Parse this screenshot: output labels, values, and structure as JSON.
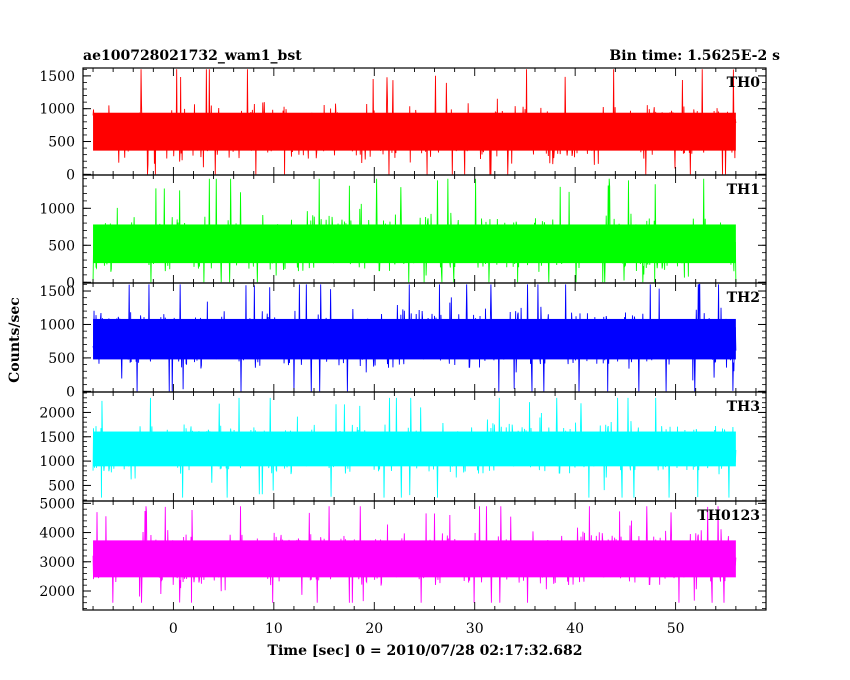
{
  "chart_data": {
    "type": "line",
    "title_left": "ae100728021732_wam1_bst",
    "title_right": "Bin time: 1.5625E-2 s",
    "xlabel": "Time [sec] 0 = 2010/07/28 02:17:32.682",
    "ylabel": "Counts/sec",
    "xlim": [
      -9,
      59
    ],
    "xticks": [
      0,
      10,
      20,
      30,
      40,
      50
    ],
    "panels": [
      {
        "name": "TH0",
        "color": "#ff0000",
        "ylim": [
          -10,
          1620
        ],
        "yticks": [
          0,
          500,
          1000,
          1500
        ],
        "series": {
          "x_range": [
            -8,
            56
          ],
          "mean": 650,
          "typical_low": 150,
          "typical_high": 1200,
          "min": 0,
          "max": 1600
        }
      },
      {
        "name": "TH1",
        "color": "#00ff00",
        "ylim": [
          -10,
          1450
        ],
        "yticks": [
          0,
          500,
          1000
        ],
        "series": {
          "x_range": [
            -8,
            56
          ],
          "mean": 520,
          "typical_low": 100,
          "typical_high": 1050,
          "min": 0,
          "max": 1400
        }
      },
      {
        "name": "TH2",
        "color": "#0000ff",
        "ylim": [
          -10,
          1620
        ],
        "yticks": [
          0,
          500,
          1000,
          1500
        ],
        "series": {
          "x_range": [
            -8,
            56
          ],
          "mean": 780,
          "typical_low": 250,
          "typical_high": 1350,
          "min": 0,
          "max": 1600
        }
      },
      {
        "name": "TH3",
        "color": "#00ffff",
        "ylim": [
          180,
          2420
        ],
        "yticks": [
          500,
          1000,
          1500,
          2000
        ],
        "series": {
          "x_range": [
            -8,
            56
          ],
          "mean": 1250,
          "typical_low": 600,
          "typical_high": 1900,
          "min": 250,
          "max": 2300
        }
      },
      {
        "name": "TH0123",
        "color": "#ff00ff",
        "ylim": [
          1350,
          5080
        ],
        "yticks": [
          2000,
          3000,
          4000,
          5000
        ],
        "series": {
          "x_range": [
            -8,
            56
          ],
          "mean": 3100,
          "typical_low": 1900,
          "typical_high": 4200,
          "min": 1600,
          "max": 4900
        }
      }
    ]
  }
}
